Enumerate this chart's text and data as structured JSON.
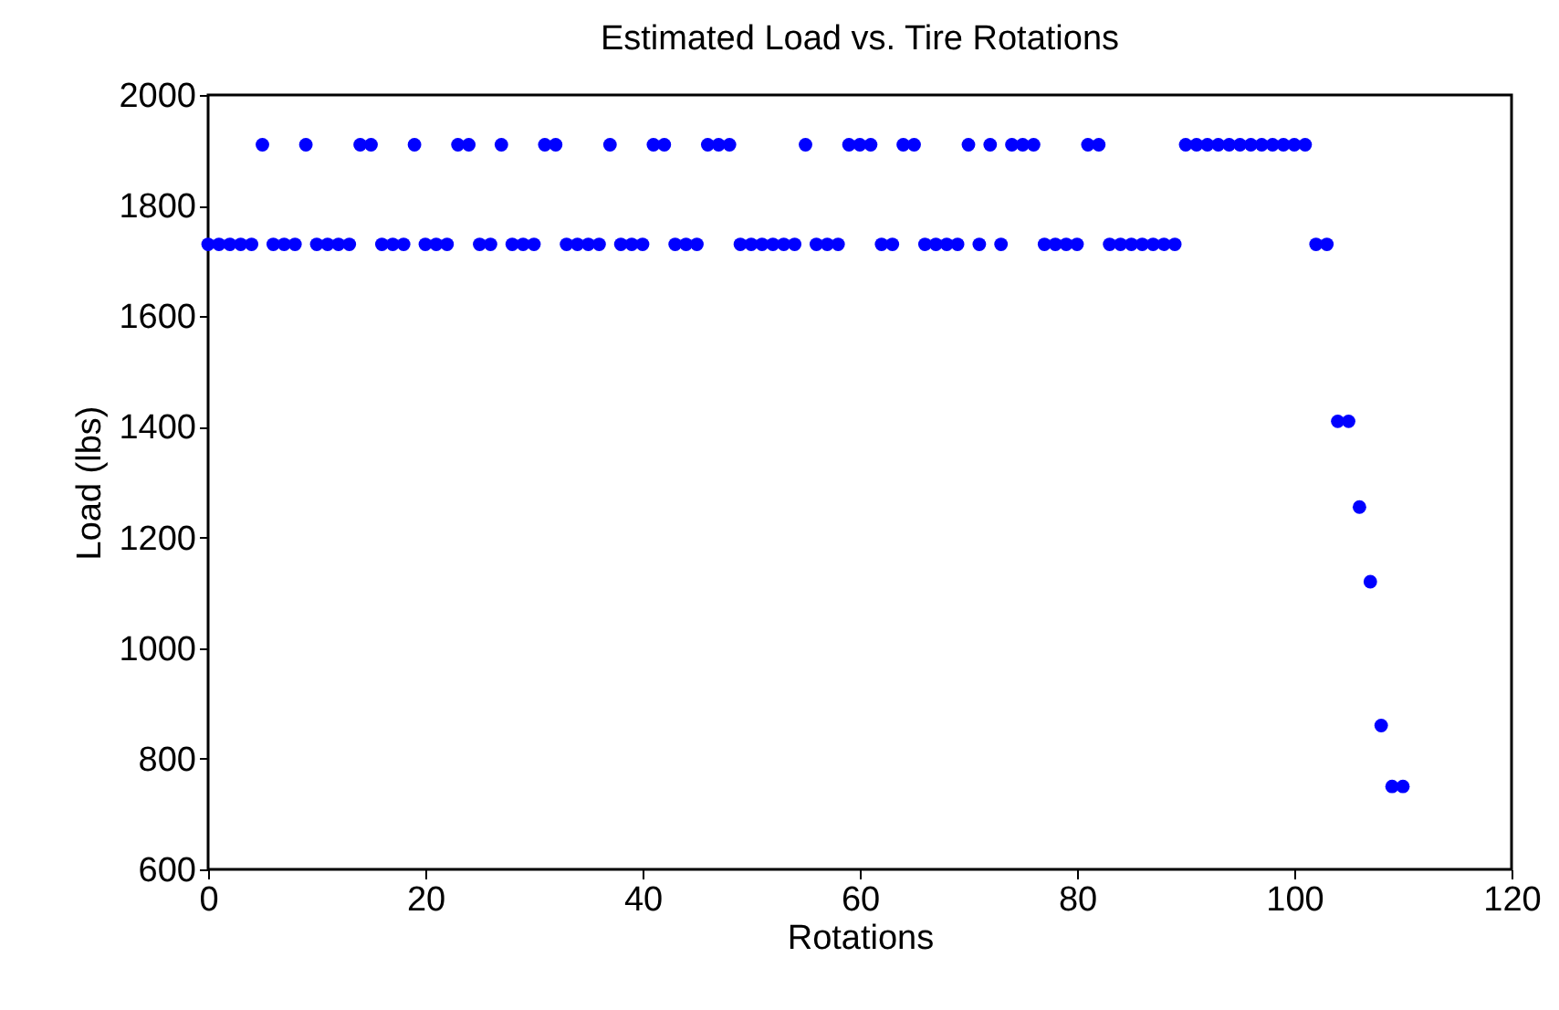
{
  "chart_data": {
    "type": "scatter",
    "title": "Estimated Load vs. Tire Rotations",
    "xlabel": "Rotations",
    "ylabel": "Load (lbs)",
    "xlim": [
      0,
      120
    ],
    "xticks": [
      0,
      20,
      40,
      60,
      80,
      100,
      120
    ],
    "ylim": [
      600,
      2000
    ],
    "yticks": [
      600,
      800,
      1000,
      1200,
      1400,
      1600,
      1800,
      2000
    ],
    "grid": false,
    "legend": false,
    "marker": "circle",
    "series": [
      {
        "color": "#0000ff",
        "x": [
          0,
          1,
          2,
          3,
          4,
          5,
          6,
          7,
          8,
          9,
          10,
          11,
          12,
          13,
          14,
          15,
          16,
          17,
          18,
          19,
          20,
          21,
          22,
          23,
          24,
          25,
          26,
          27,
          28,
          29,
          30,
          31,
          32,
          33,
          34,
          35,
          36,
          37,
          38,
          39,
          40,
          41,
          42,
          43,
          44,
          45,
          46,
          47,
          48,
          49,
          50,
          51,
          52,
          53,
          54,
          55,
          56,
          57,
          58,
          59,
          60,
          61,
          62,
          63,
          64,
          65,
          66,
          67,
          68,
          69,
          70,
          71,
          72,
          73,
          74,
          75,
          76,
          77,
          78,
          79,
          80,
          81,
          82,
          83,
          84,
          85,
          86,
          87,
          88,
          89,
          90,
          91,
          92,
          93,
          94,
          95,
          96,
          97,
          98,
          99,
          100,
          101,
          102,
          103,
          104,
          105,
          106,
          107,
          108,
          109,
          110
        ],
        "values": [
          1730,
          1730,
          1730,
          1730,
          1730,
          1910,
          1730,
          1730,
          1730,
          1910,
          1730,
          1730,
          1730,
          1730,
          1910,
          1910,
          1730,
          1730,
          1730,
          1910,
          1730,
          1730,
          1730,
          1910,
          1910,
          1730,
          1730,
          1910,
          1730,
          1730,
          1730,
          1910,
          1910,
          1730,
          1730,
          1730,
          1730,
          1910,
          1730,
          1730,
          1730,
          1910,
          1910,
          1730,
          1730,
          1730,
          1910,
          1910,
          1910,
          1730,
          1730,
          1730,
          1730,
          1730,
          1730,
          1910,
          1730,
          1730,
          1730,
          1910,
          1910,
          1910,
          1730,
          1730,
          1910,
          1910,
          1730,
          1730,
          1730,
          1730,
          1910,
          1730,
          1910,
          1730,
          1910,
          1910,
          1910,
          1730,
          1730,
          1730,
          1730,
          1910,
          1910,
          1730,
          1730,
          1730,
          1730,
          1730,
          1730,
          1730,
          1910,
          1910,
          1910,
          1910,
          1910,
          1910,
          1910,
          1910,
          1910,
          1910,
          1910,
          1910,
          1730,
          1730,
          1410,
          1410,
          1255,
          1120,
          860,
          750,
          750
        ]
      }
    ]
  }
}
